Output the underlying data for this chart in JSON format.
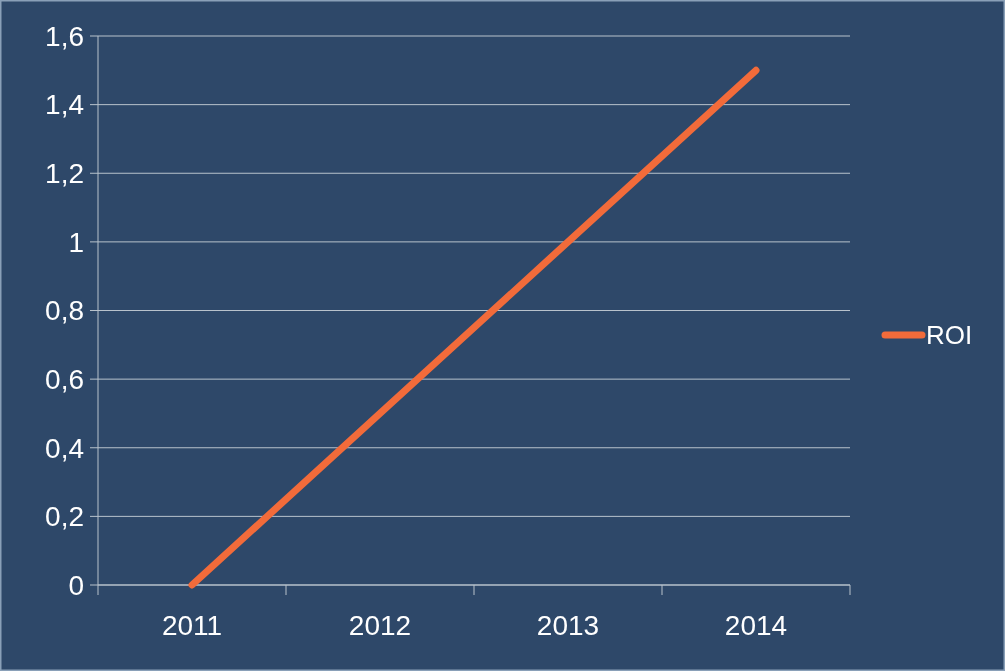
{
  "chart_data": {
    "type": "line",
    "categories": [
      "2011",
      "2012",
      "2013",
      "2014"
    ],
    "series": [
      {
        "name": "ROI",
        "color": "#f26b3a",
        "values": [
          0,
          0.5,
          1,
          1.5
        ]
      }
    ],
    "ylim": [
      0,
      1.6
    ],
    "yticks": [
      0,
      {
        "value": 0.2,
        "label": "0,2"
      },
      {
        "value": 0.4,
        "label": "0,4"
      },
      {
        "value": 0.6,
        "label": "0,6"
      },
      {
        "value": 0.8,
        "label": "0,8"
      },
      1,
      {
        "value": 1.2,
        "label": "1,2"
      },
      {
        "value": 1.4,
        "label": "1,4"
      },
      {
        "value": 1.6,
        "label": "1,6"
      }
    ],
    "grid": "y",
    "legend": "right",
    "marker": "none",
    "line_style": "solid"
  }
}
